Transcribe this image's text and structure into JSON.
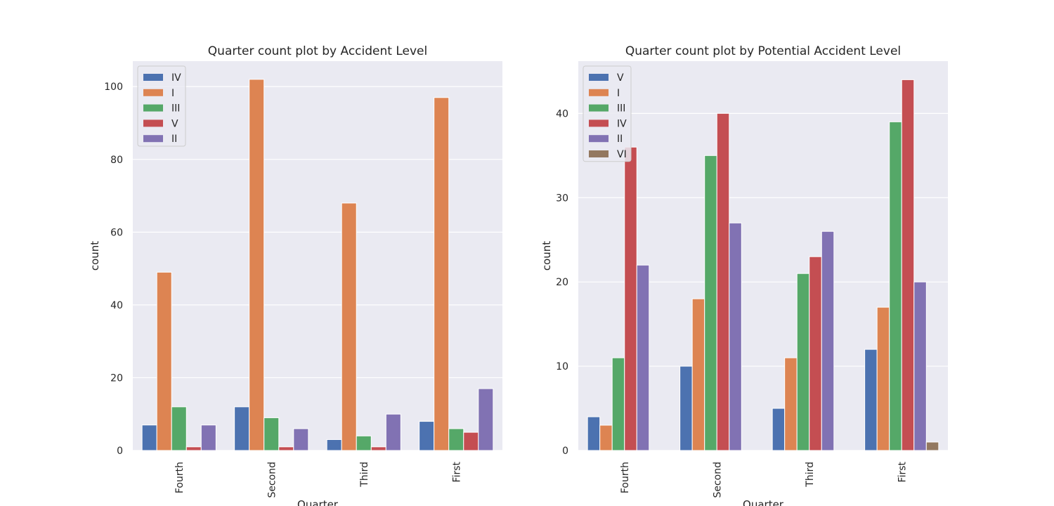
{
  "chart_data": [
    {
      "type": "bar",
      "title": "Quarter count plot by Accident Level",
      "xlabel": "Quarter",
      "ylabel": "count",
      "categories": [
        "Fourth",
        "Second",
        "Third",
        "First"
      ],
      "ylim": [
        0,
        107
      ],
      "yticks": [
        0,
        20,
        40,
        60,
        80,
        100
      ],
      "grid": true,
      "legend_position": "top-left",
      "series": [
        {
          "name": "IV",
          "color": "#4c72b0",
          "values": [
            7,
            12,
            3,
            8
          ]
        },
        {
          "name": "I",
          "color": "#dd8452",
          "values": [
            49,
            102,
            68,
            97
          ]
        },
        {
          "name": "III",
          "color": "#55a868",
          "values": [
            12,
            9,
            4,
            6
          ]
        },
        {
          "name": "V",
          "color": "#c44e52",
          "values": [
            1,
            1,
            1,
            5
          ]
        },
        {
          "name": "II",
          "color": "#8172b3",
          "values": [
            7,
            6,
            10,
            17
          ]
        }
      ]
    },
    {
      "type": "bar",
      "title": "Quarter count plot by Potential Accident Level",
      "xlabel": "Quarter",
      "ylabel": "count",
      "categories": [
        "Fourth",
        "Second",
        "Third",
        "First"
      ],
      "ylim": [
        0,
        46.2
      ],
      "yticks": [
        0,
        10,
        20,
        30,
        40
      ],
      "grid": true,
      "legend_position": "top-left",
      "series": [
        {
          "name": "V",
          "color": "#4c72b0",
          "values": [
            4,
            10,
            5,
            12
          ]
        },
        {
          "name": "I",
          "color": "#dd8452",
          "values": [
            3,
            18,
            11,
            17
          ]
        },
        {
          "name": "III",
          "color": "#55a868",
          "values": [
            11,
            35,
            21,
            39
          ]
        },
        {
          "name": "IV",
          "color": "#c44e52",
          "values": [
            36,
            40,
            23,
            44
          ]
        },
        {
          "name": "II",
          "color": "#8172b3",
          "values": [
            22,
            27,
            26,
            20
          ]
        },
        {
          "name": "VI",
          "color": "#937860",
          "values": [
            null,
            null,
            null,
            1
          ]
        }
      ]
    }
  ]
}
